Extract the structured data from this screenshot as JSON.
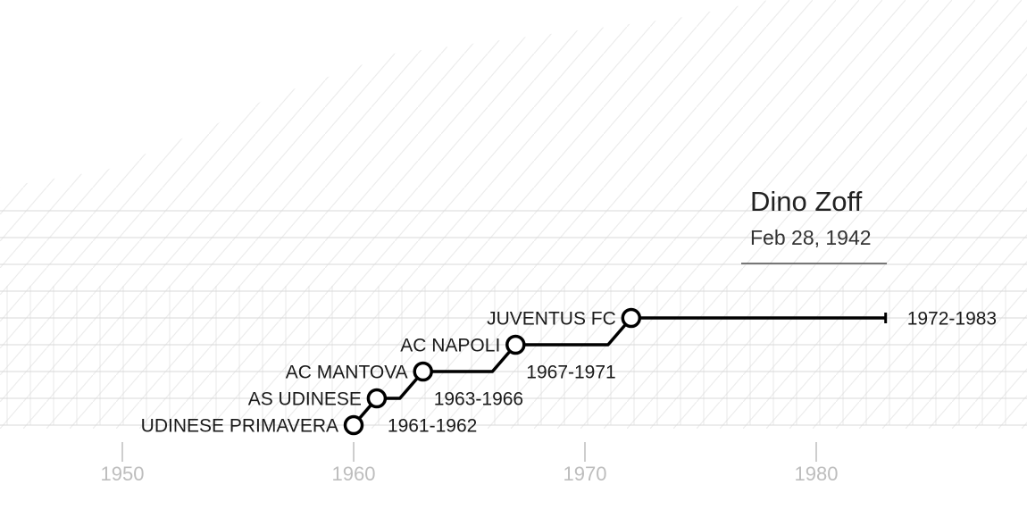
{
  "player": {
    "name": "Dino Zoff",
    "birth_date": "Feb 28, 1942"
  },
  "colors": {
    "line": "#000000",
    "grid": "#d8d8d8",
    "axis": "#bdbdbd",
    "text": "#1a1a1a"
  },
  "chart_data": {
    "type": "line",
    "title": "Dino Zoff",
    "subtitle": "Feb 28, 1942",
    "xlabel": "",
    "ylabel": "",
    "x_ticks": [
      1950,
      1960,
      1970,
      1980
    ],
    "tick_labels": [
      "1950",
      "1960",
      "1970",
      "1980"
    ],
    "xlim": [
      1945,
      1988
    ],
    "clubs": [
      {
        "club": "UDINESE PRIMAVERA",
        "start": 1960,
        "end": 1960,
        "period": ""
      },
      {
        "club": "AS UDINESE",
        "start": 1961,
        "end": 1962,
        "period": "1961-1962"
      },
      {
        "club": "AC MANTOVA",
        "start": 1963,
        "end": 1966,
        "period": "1963-1966"
      },
      {
        "club": "AC NAPOLI",
        "start": 1967,
        "end": 1971,
        "period": "1967-1971"
      },
      {
        "club": "JUVENTUS FC",
        "start": 1972,
        "end": 1983,
        "period": "1972-1983"
      }
    ]
  }
}
